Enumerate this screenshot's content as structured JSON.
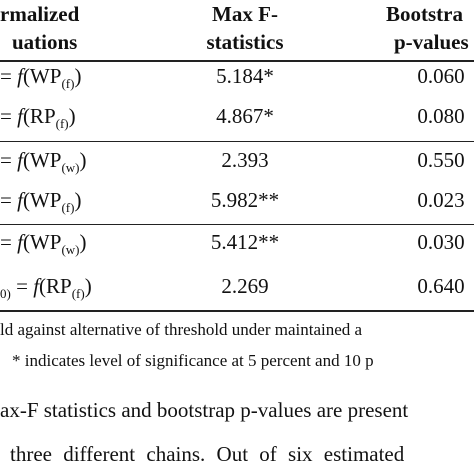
{
  "table": {
    "header": {
      "col1": [
        "rmalized",
        "uations"
      ],
      "col2": [
        "Max F-",
        "statistics"
      ],
      "col3": [
        "Bootstra",
        "p-values"
      ]
    },
    "rows": [
      {
        "eq": {
          "eq": "=",
          "f": "f",
          "open": "(WP",
          "sub": "(f)",
          "close": ")"
        },
        "maxf": "5.184*",
        "p": "0.060"
      },
      {
        "eq": {
          "eq": "=",
          "f": "f",
          "open": "(RP",
          "sub": "(f)",
          "close": ")"
        },
        "maxf": "4.867*",
        "p": "0.080"
      },
      {
        "eq": {
          "eq": "=",
          "f": "f",
          "open": "(WP",
          "sub": "(w)",
          "close": ")"
        },
        "maxf": "2.393",
        "p": "0.550"
      },
      {
        "eq": {
          "eq": "=",
          "f": "f",
          "open": "(WP",
          "sub": "(f)",
          "close": ")"
        },
        "maxf": "5.982**",
        "p": "0.023"
      },
      {
        "eq": {
          "eq": "=",
          "f": "f",
          "open": "(WP",
          "sub": "(w)",
          "close": ")"
        },
        "maxf": "5.412**",
        "p": "0.030"
      },
      {
        "eq": {
          "pre": "0)",
          "eq": "=",
          "f": "f",
          "open": "(RP",
          "sub": "(f)",
          "close": ")"
        },
        "maxf": "2.269",
        "p": "0.640"
      }
    ],
    "notes": [
      "ld against alternative of threshold under maintained a",
      "* indicates level of significance at 5 percent and 10 p"
    ]
  },
  "paragraph": [
    "ax-F statistics and bootstrap p-values are present",
    "three different chains. Out of six estimated"
  ]
}
